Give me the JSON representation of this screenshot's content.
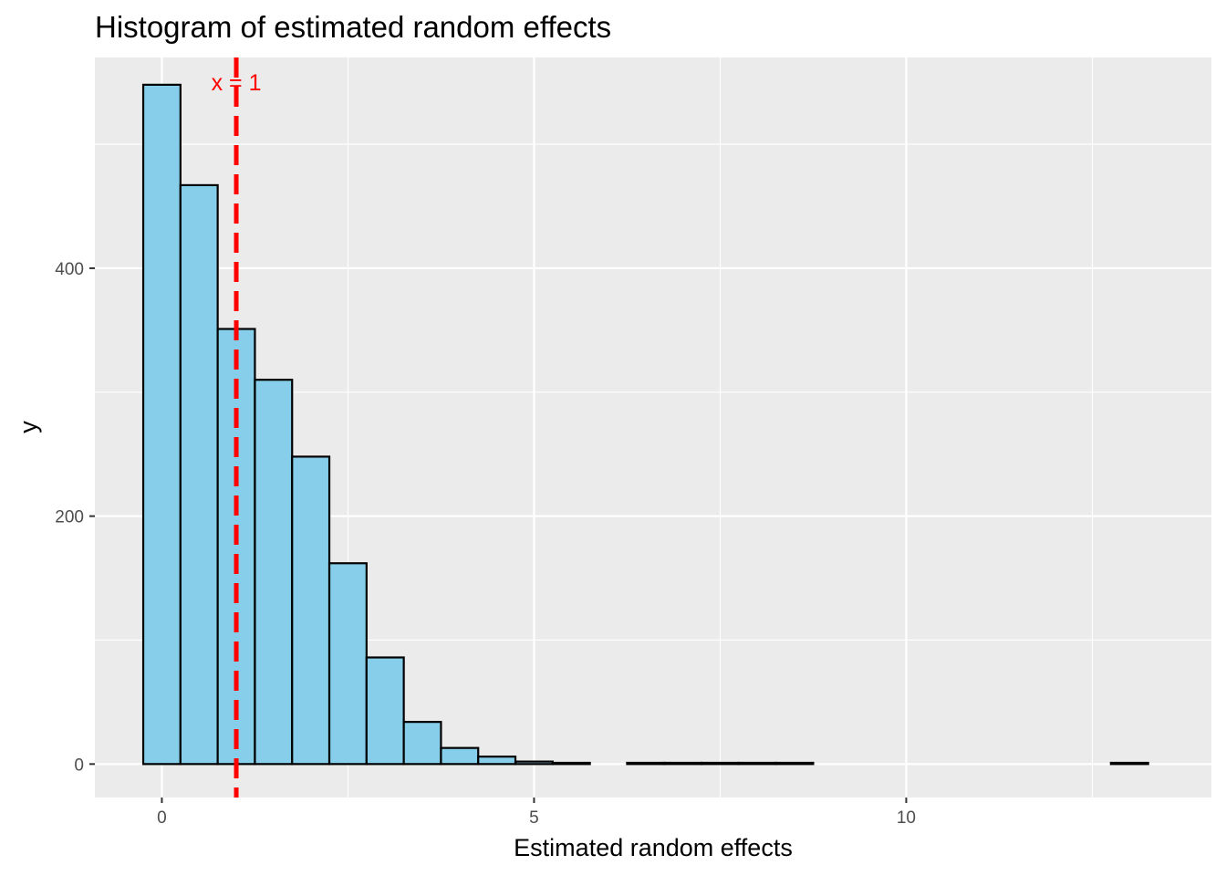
{
  "chart_data": {
    "type": "bar",
    "title": "Histogram of estimated random effects",
    "xlabel": "Estimated random effects",
    "ylabel": "y",
    "bin_width": 0.5,
    "bin_centers": [
      0,
      0.5,
      1,
      1.5,
      2,
      2.5,
      3,
      3.5,
      4,
      4.5,
      5,
      5.5,
      6,
      6.5,
      7,
      7.5,
      8,
      8.5,
      9,
      9.5,
      10,
      10.5,
      11,
      11.5,
      12,
      12.5,
      13
    ],
    "values": [
      548,
      467,
      351,
      310,
      248,
      162,
      86,
      34,
      13,
      6,
      2,
      1,
      0,
      1,
      1,
      1,
      1,
      1,
      0,
      0,
      0,
      0,
      0,
      0,
      0,
      0,
      1
    ],
    "xlim": [
      -0.9,
      14.1
    ],
    "ylim": [
      -27,
      570
    ],
    "x_ticks": [
      0,
      5,
      10
    ],
    "x_tick_labels": [
      "0",
      "5",
      "10"
    ],
    "y_ticks": [
      0,
      200,
      400
    ],
    "y_tick_labels": [
      "0",
      "200",
      "400"
    ],
    "vline": {
      "x": 1,
      "color": "#ff0000",
      "linetype": "dashed"
    },
    "annotation": {
      "text": "x = 1",
      "x": 1,
      "y": 548
    },
    "colors": {
      "bar_fill": "#87ceeb",
      "bar_stroke": "#000000",
      "panel_bg": "#ebebeb",
      "grid": "#ffffff"
    },
    "grid": true
  }
}
